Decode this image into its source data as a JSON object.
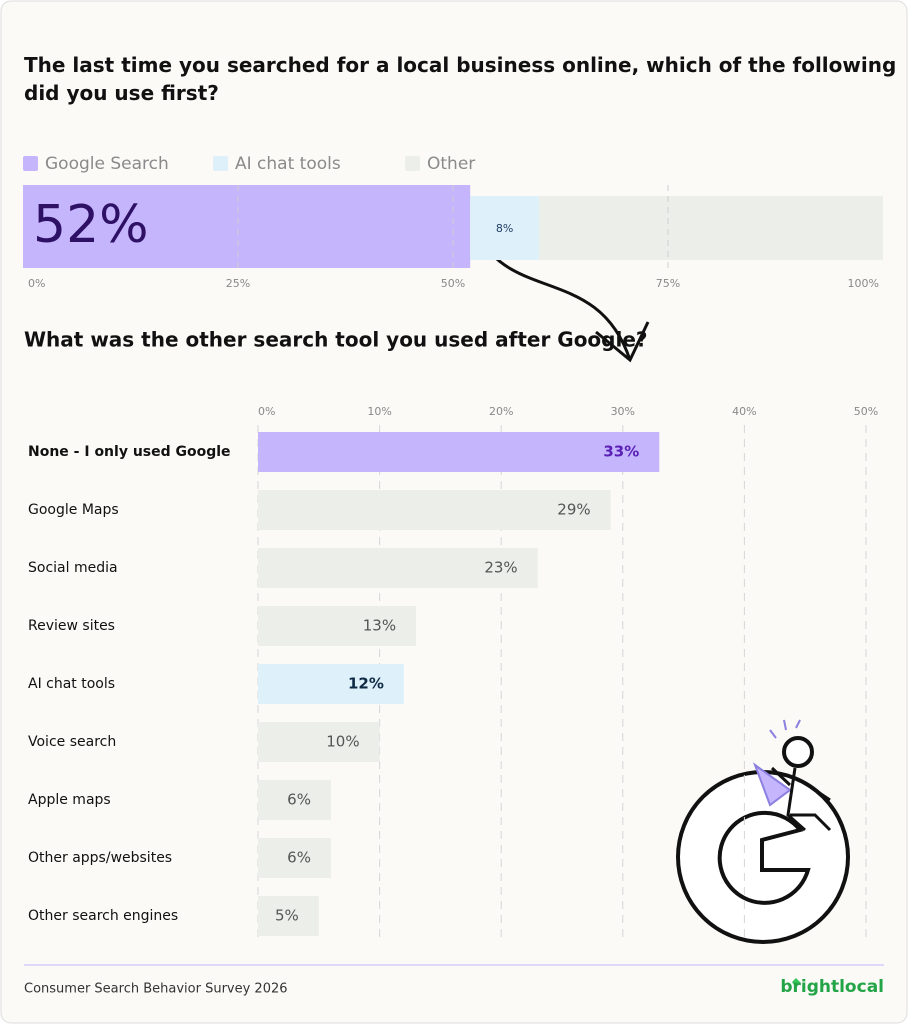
{
  "chart_data": [
    {
      "type": "stacked-bar",
      "title": "The last time you searched for a local business online, which of the following did you use first?",
      "series": [
        {
          "name": "Google Search",
          "color": "#c4b5fd",
          "values": [
            52
          ],
          "value_labels": [
            "52%"
          ]
        },
        {
          "name": "AI chat tools",
          "color": "#def1fb",
          "values": [
            8
          ],
          "value_labels": [
            "8%"
          ]
        },
        {
          "name": "Other",
          "color": "#eceeea",
          "values": [
            40
          ]
        }
      ],
      "xlim": [
        0,
        100
      ],
      "xticks": [
        {
          "value": 0,
          "label": "0%"
        },
        {
          "value": 25,
          "label": "25%"
        },
        {
          "value": 50,
          "label": "50%"
        },
        {
          "value": 75,
          "label": "75%"
        },
        {
          "value": 100,
          "label": "100%"
        }
      ],
      "grid": true
    },
    {
      "type": "hbar",
      "title": "What was the other search tool you used after Google?",
      "categories": [
        "None - I only used Google",
        "Google Maps",
        "Social media",
        "Review sites",
        "AI chat tools",
        "Voice search",
        "Apple maps",
        "Other apps/websites",
        "Other search engines"
      ],
      "values": [
        33,
        29,
        23,
        13,
        12,
        10,
        6,
        6,
        5
      ],
      "value_labels": [
        "33%",
        "29%",
        "23%",
        "13%",
        "12%",
        "10%",
        "6%",
        "6%",
        "5%"
      ],
      "colors": [
        "#c4b5fd",
        "#eceeea",
        "#eceeea",
        "#eceeea",
        "#def1fb",
        "#eceeea",
        "#eceeea",
        "#eceeea",
        "#eceeea"
      ],
      "xlim": [
        0,
        50
      ],
      "xticks": [
        {
          "value": 0,
          "label": "0%"
        },
        {
          "value": 10,
          "label": "10%"
        },
        {
          "value": 20,
          "label": "20%"
        },
        {
          "value": 30,
          "label": "30%"
        },
        {
          "value": 40,
          "label": "40%"
        },
        {
          "value": 50,
          "label": "50%"
        }
      ],
      "grid": true
    }
  ],
  "footer": {
    "source": "Consumer Search Behavior Survey 2026",
    "brand": "brightlocal"
  }
}
